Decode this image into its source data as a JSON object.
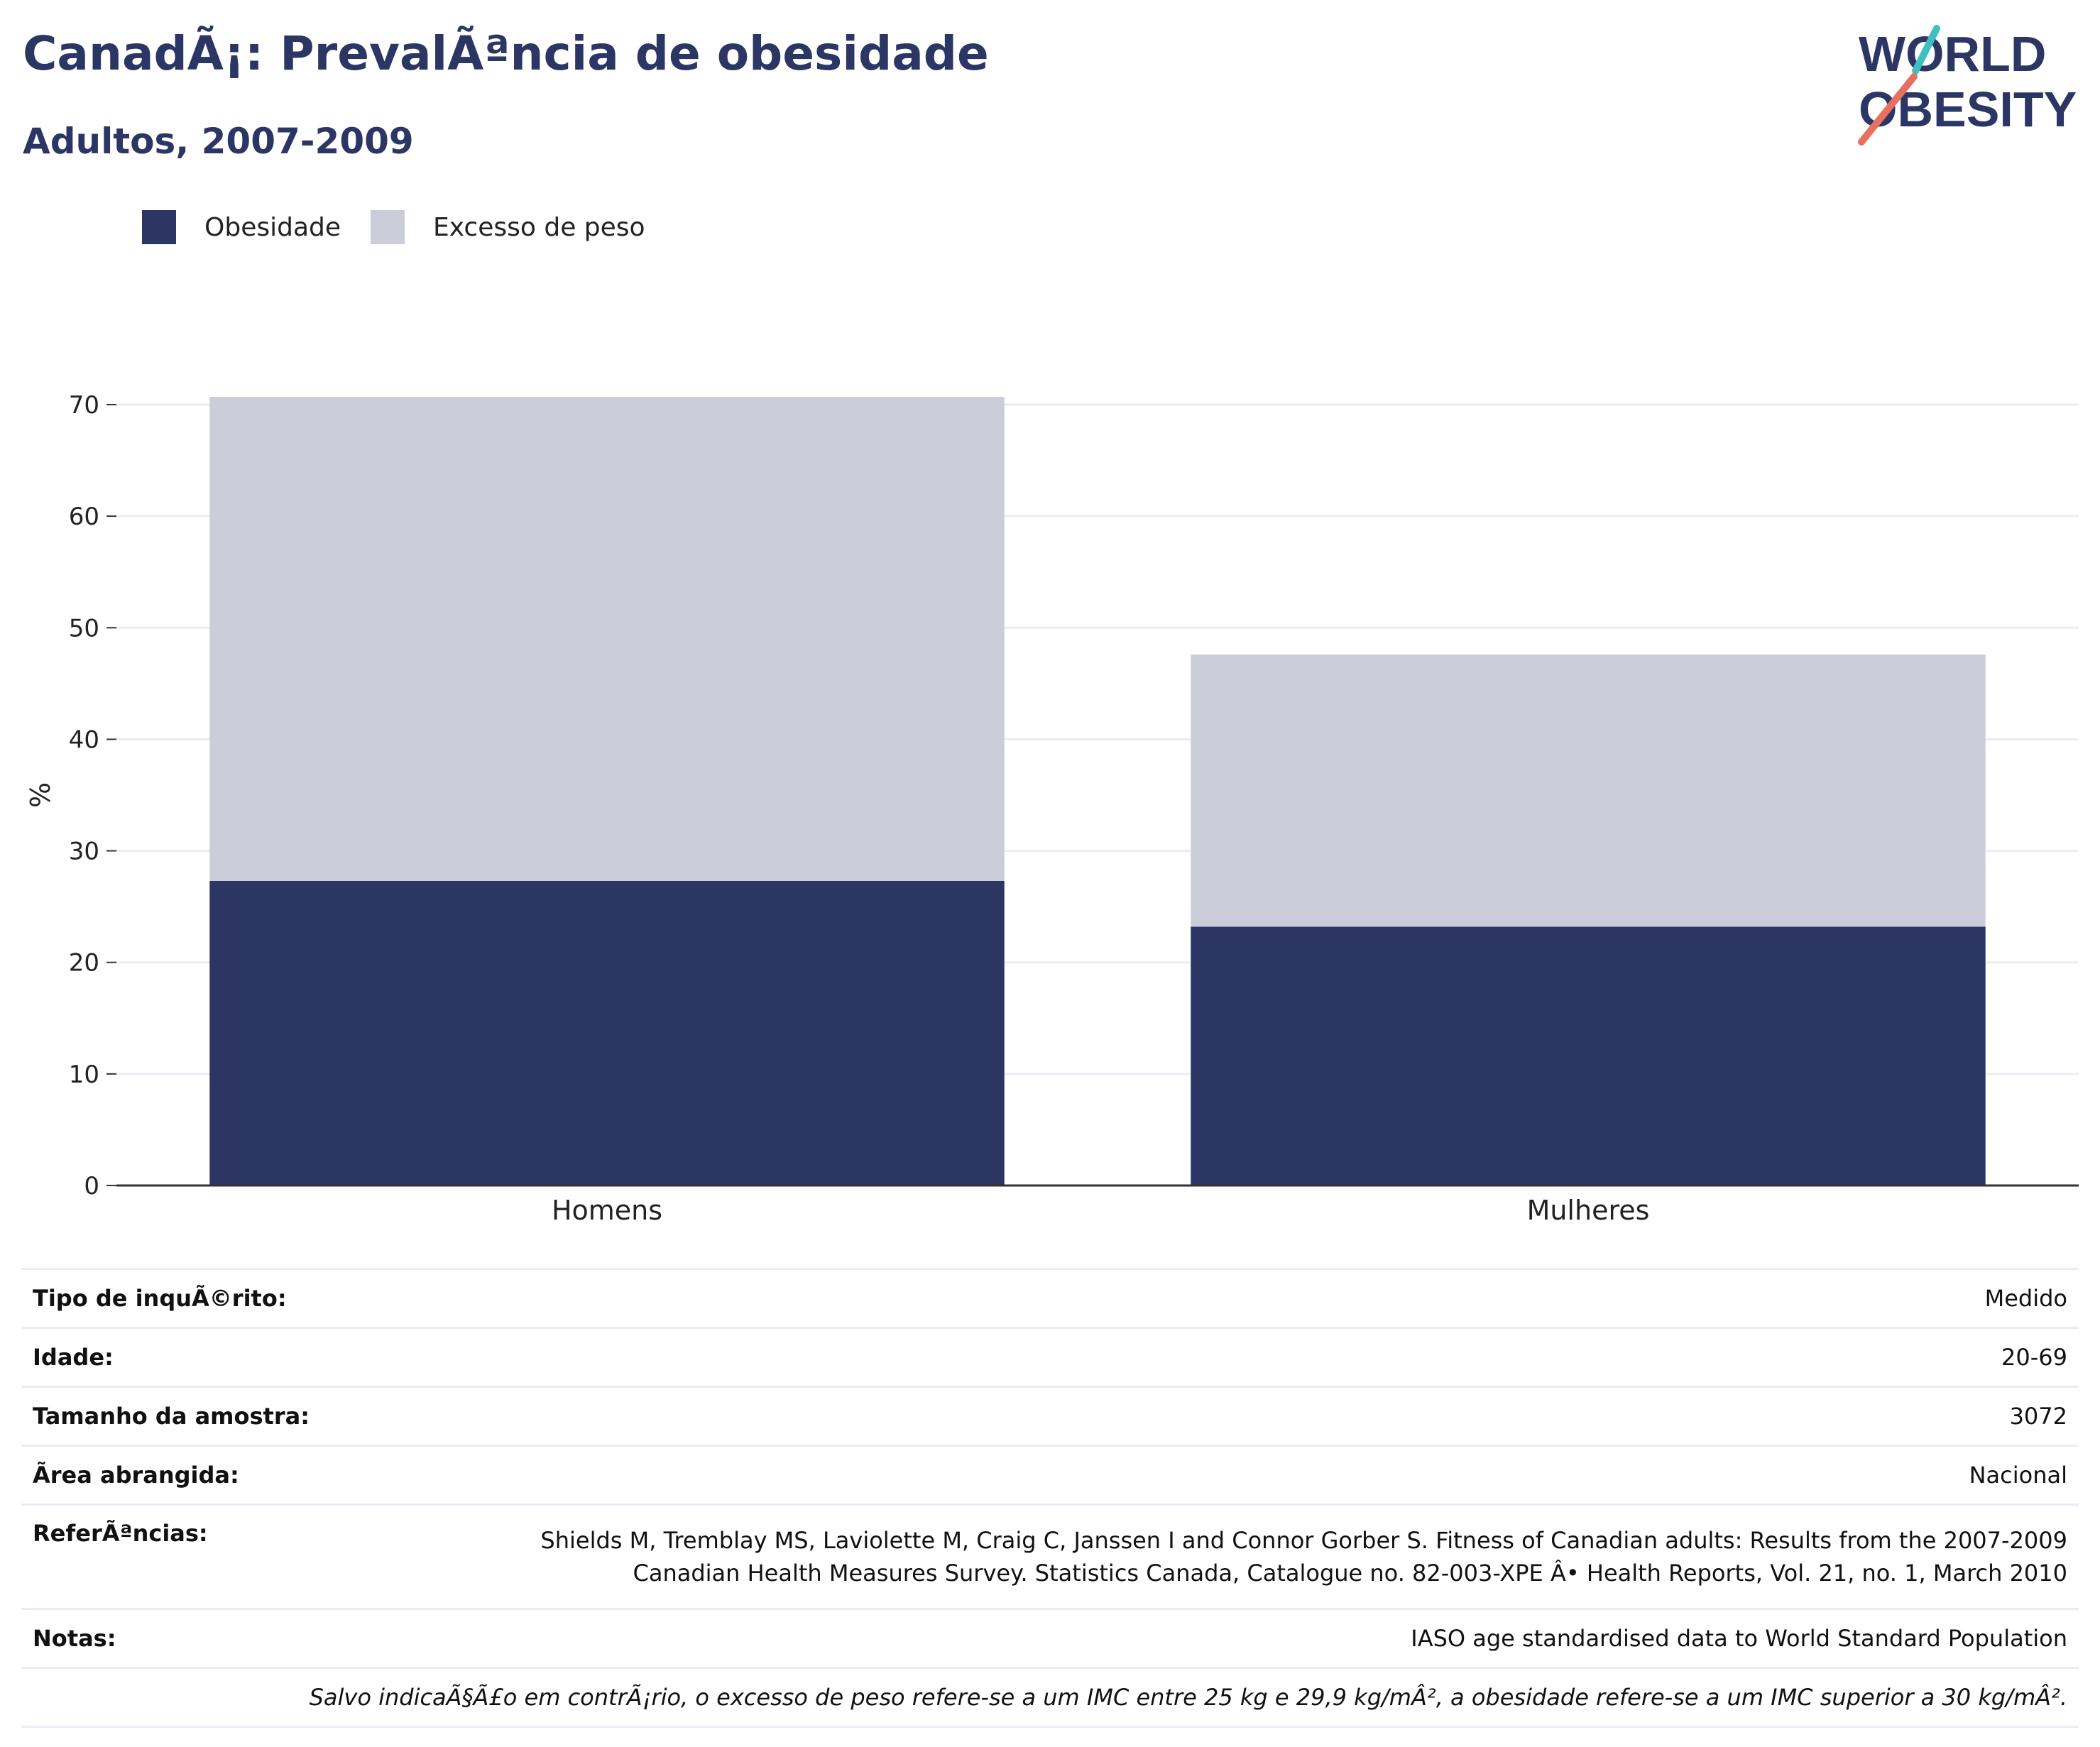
{
  "header": {
    "title": "CanadÃ¡: PrevalÃªncia de obesidade",
    "subtitle": "Adultos, 2007-2009"
  },
  "logo": {
    "line1": "WORLD",
    "line2": "OBESITY",
    "colors": {
      "text": "#2b3664",
      "accent_teal": "#3fbfbf",
      "accent_coral": "#e8705f"
    }
  },
  "colors": {
    "obesidade": "#2b3664",
    "excesso": "#cbcdd8",
    "grid": "#ebedf3",
    "axis": "#333333"
  },
  "chart_data": {
    "type": "bar",
    "stacked": true,
    "categories": [
      "Homens",
      "Mulheres"
    ],
    "series": [
      {
        "name": "Obesidade",
        "values": [
          27.3,
          23.2
        ]
      },
      {
        "name": "Excesso de peso",
        "values": [
          43.4,
          24.4
        ]
      }
    ],
    "ylabel": "%",
    "ylim": [
      0,
      70
    ],
    "yticks": [
      0,
      10,
      20,
      30,
      40,
      50,
      60,
      70
    ],
    "grid": true,
    "legend_position": "top-left"
  },
  "info": {
    "rows": [
      {
        "label": "Tipo de inquÃ©rito:",
        "value": "Medido"
      },
      {
        "label": "Idade:",
        "value": "20-69"
      },
      {
        "label": "Tamanho da amostra:",
        "value": "3072"
      },
      {
        "label": "Ã\u001frea abrangida:",
        "value": "Nacional"
      }
    ],
    "references_label": "ReferÃªncias:",
    "references_lines": [
      "Shields M, Tremblay MS, Laviolette M, Craig C, Janssen I and Connor Gorber S. Fitness of Canadian adults: Results from the 2007-2009",
      "Canadian Health Measures Survey. Statistics Canada, Catalogue no. 82-003-XPE Â• Health Reports, Vol. 21, no. 1, March 2010"
    ],
    "notes_label": "Notas:",
    "notes_value": "IASO age standardised data to World Standard Population",
    "footnote": "Salvo indicaÃ§Ã£o em contrÃ¡rio, o excesso de peso refere-se a um IMC entre 25 kg e 29,9 kg/mÂ², a obesidade refere-se a um IMC superior a 30 kg/mÂ²."
  }
}
